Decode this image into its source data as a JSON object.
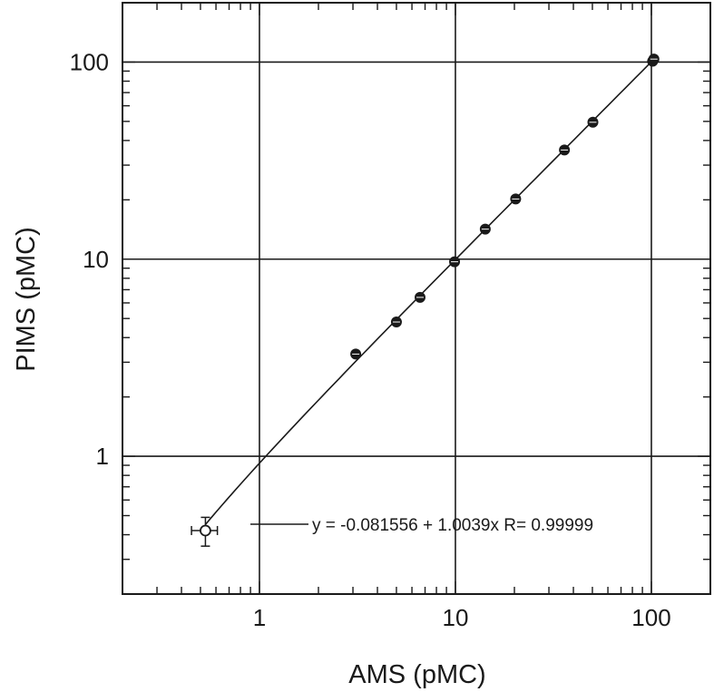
{
  "chart_data": {
    "type": "scatter",
    "title": "",
    "xlabel": "AMS (pMC)",
    "ylabel": "PIMS (pMC)",
    "xscale": "log",
    "yscale": "log",
    "xlim": [
      0.2,
      200
    ],
    "ylim": [
      0.2,
      200
    ],
    "xticks": [
      1,
      10,
      100
    ],
    "xtick_labels": [
      "1",
      "10",
      "100"
    ],
    "yticks": [
      1,
      10,
      100
    ],
    "ytick_labels": [
      "1",
      "10",
      "100"
    ],
    "grid": true,
    "series": [
      {
        "points": [
          {
            "x": 0.53,
            "y": 0.42,
            "xerr": 0.08,
            "yerr": 0.07,
            "marker": "open"
          },
          {
            "x": 3.1,
            "y": 3.3
          },
          {
            "x": 5.0,
            "y": 4.8
          },
          {
            "x": 6.6,
            "y": 6.4
          },
          {
            "x": 9.9,
            "y": 9.7
          },
          {
            "x": 14.2,
            "y": 14.2
          },
          {
            "x": 20.3,
            "y": 20.2
          },
          {
            "x": 36.0,
            "y": 35.8
          },
          {
            "x": 50.3,
            "y": 49.5
          },
          {
            "x": 101.5,
            "y": 101.0
          },
          {
            "x": 103.0,
            "y": 103.5
          }
        ]
      }
    ],
    "fit": {
      "intercept": -0.081556,
      "slope": 1.0039,
      "x_range": [
        0.53,
        101.5
      ],
      "label": "y = -0.081556 + 1.0039x   R= 0.99999"
    },
    "legend_position": "lower-right",
    "colors": {
      "ink": "#1a1a1a",
      "grid": "#1a1a1a",
      "background": "#ffffff"
    }
  }
}
